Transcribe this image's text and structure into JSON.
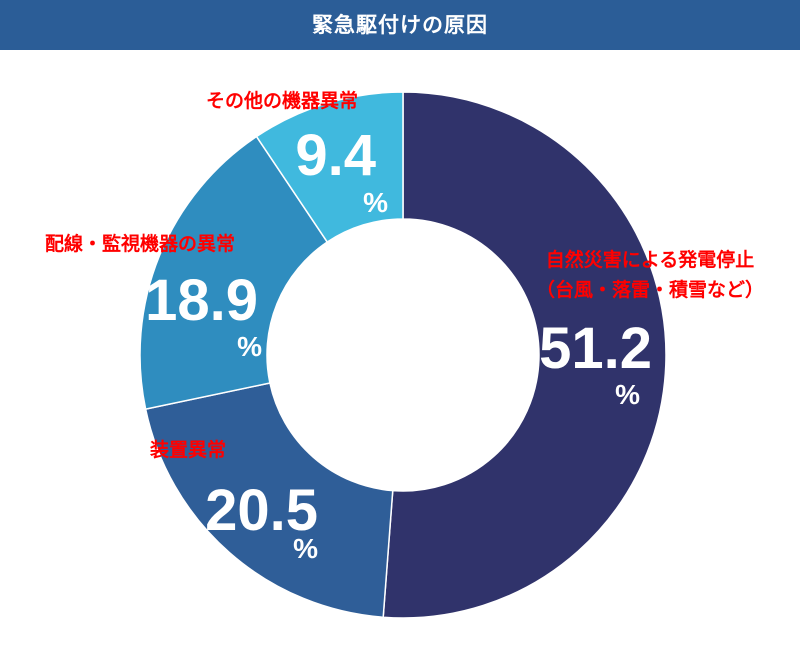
{
  "title": "緊急駆付けの原因",
  "colors": {
    "header_bg": "#2b5d97",
    "title_text": "#ffffff",
    "category_label": "#ff0000",
    "value_label": "#ffffff"
  },
  "chart_data": {
    "type": "pie",
    "title": "緊急駆付けの原因",
    "donut": true,
    "unit": "%",
    "slices": [
      {
        "label_lines": [
          "自然災害による発電停止",
          "（台風・落雷・積雪など）"
        ],
        "value": 51.2,
        "value_text": "51.2",
        "color": "#30336b"
      },
      {
        "label_lines": [
          "装置異常"
        ],
        "value": 20.5,
        "value_text": "20.5",
        "color": "#2f5e98"
      },
      {
        "label_lines": [
          "配線・監視機器の異常"
        ],
        "value": 18.9,
        "value_text": "18.9",
        "color": "#2f8dbf"
      },
      {
        "label_lines": [
          "その他の機器異常"
        ],
        "value": 9.4,
        "value_text": "9.4",
        "color": "#40b9de"
      }
    ]
  }
}
